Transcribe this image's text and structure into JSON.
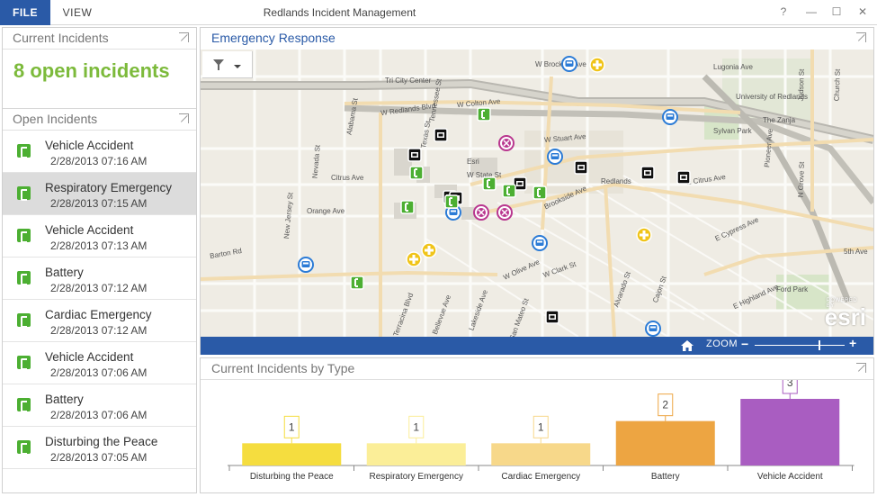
{
  "titlebar": {
    "file_label": "FILE",
    "view_label": "VIEW",
    "app_title": "Redlands Incident Management",
    "help_label": "?",
    "minimize_label": "—",
    "maximize_label": "☐",
    "close_label": "✕"
  },
  "current_panel": {
    "title": "Current Incidents",
    "count_text": "8 open incidents",
    "count_color": "#7cba3b"
  },
  "open_panel": {
    "title": "Open Incidents",
    "items": [
      {
        "title": "Vehicle Accident",
        "time": "2/28/2013 07:16 AM"
      },
      {
        "title": "Respiratory Emergency",
        "time": "2/28/2013 07:15 AM"
      },
      {
        "title": "Vehicle Accident",
        "time": "2/28/2013 07:13 AM"
      },
      {
        "title": "Battery",
        "time": "2/28/2013 07:12 AM"
      },
      {
        "title": "Cardiac Emergency",
        "time": "2/28/2013 07:12 AM"
      },
      {
        "title": "Vehicle Accident",
        "time": "2/28/2013 07:06 AM"
      },
      {
        "title": "Battery",
        "time": "2/28/2013 07:06 AM"
      },
      {
        "title": "Disturbing the Peace",
        "time": "2/28/2013 07:05 AM"
      }
    ],
    "selected_index": 1,
    "icon": "phone-incident-icon"
  },
  "map_panel": {
    "title": "Emergency Response",
    "title_color": "#2a5aa7",
    "zoom_label": "ZOOM",
    "zoom_minus": "−",
    "zoom_plus": "+",
    "zoom_level": 0.72,
    "esri_powered": "POWERED BY",
    "esri_logo": "esri",
    "street_labels": [
      "W Brockton Ave",
      "Tri City Center",
      "W Colton Ave",
      "W Redlands Blvd",
      "Alabama St",
      "Tennessee St",
      "Nevada St",
      "Citrus Ave",
      "Orange Ave",
      "New Jersey St",
      "Texas St",
      "Barton Rd",
      "W Stuart Ave",
      "Esri",
      "W State St",
      "Redlands",
      "W Olive Ave",
      "W Clark St",
      "Brookside Ave",
      "University of Redlands",
      "The Zanja",
      "Sylvan Park",
      "E Citrus Ave",
      "E Cypress Ave",
      "E Highland Ave",
      "5th Ave",
      "Ford Park",
      "Terracina Blvd",
      "Bellevue Ave",
      "Lakeside Ave",
      "San Mateo St",
      "Cajon St",
      "Alvarado St",
      "N Grove St",
      "Judson St",
      "Church St",
      "Lugonia Ave",
      "Pioneer Ave"
    ]
  },
  "chart_panel": {
    "title": "Current Incidents by Type"
  },
  "chart_data": {
    "type": "bar",
    "title": "",
    "categories": [
      "Disturbing the Peace",
      "Respiratory Emergency",
      "Cardiac Emergency",
      "Battery",
      "Vehicle Accident"
    ],
    "values": [
      1,
      1,
      1,
      2,
      3
    ],
    "colors": [
      "#f5dd3f",
      "#fbee98",
      "#f7d88a",
      "#eda542",
      "#a95dc1"
    ],
    "data_labels": [
      "1",
      "1",
      "1",
      "2",
      "3"
    ],
    "ylim": [
      0,
      3
    ],
    "xlabel": "",
    "ylabel": "",
    "grid": false,
    "legend": "none"
  }
}
